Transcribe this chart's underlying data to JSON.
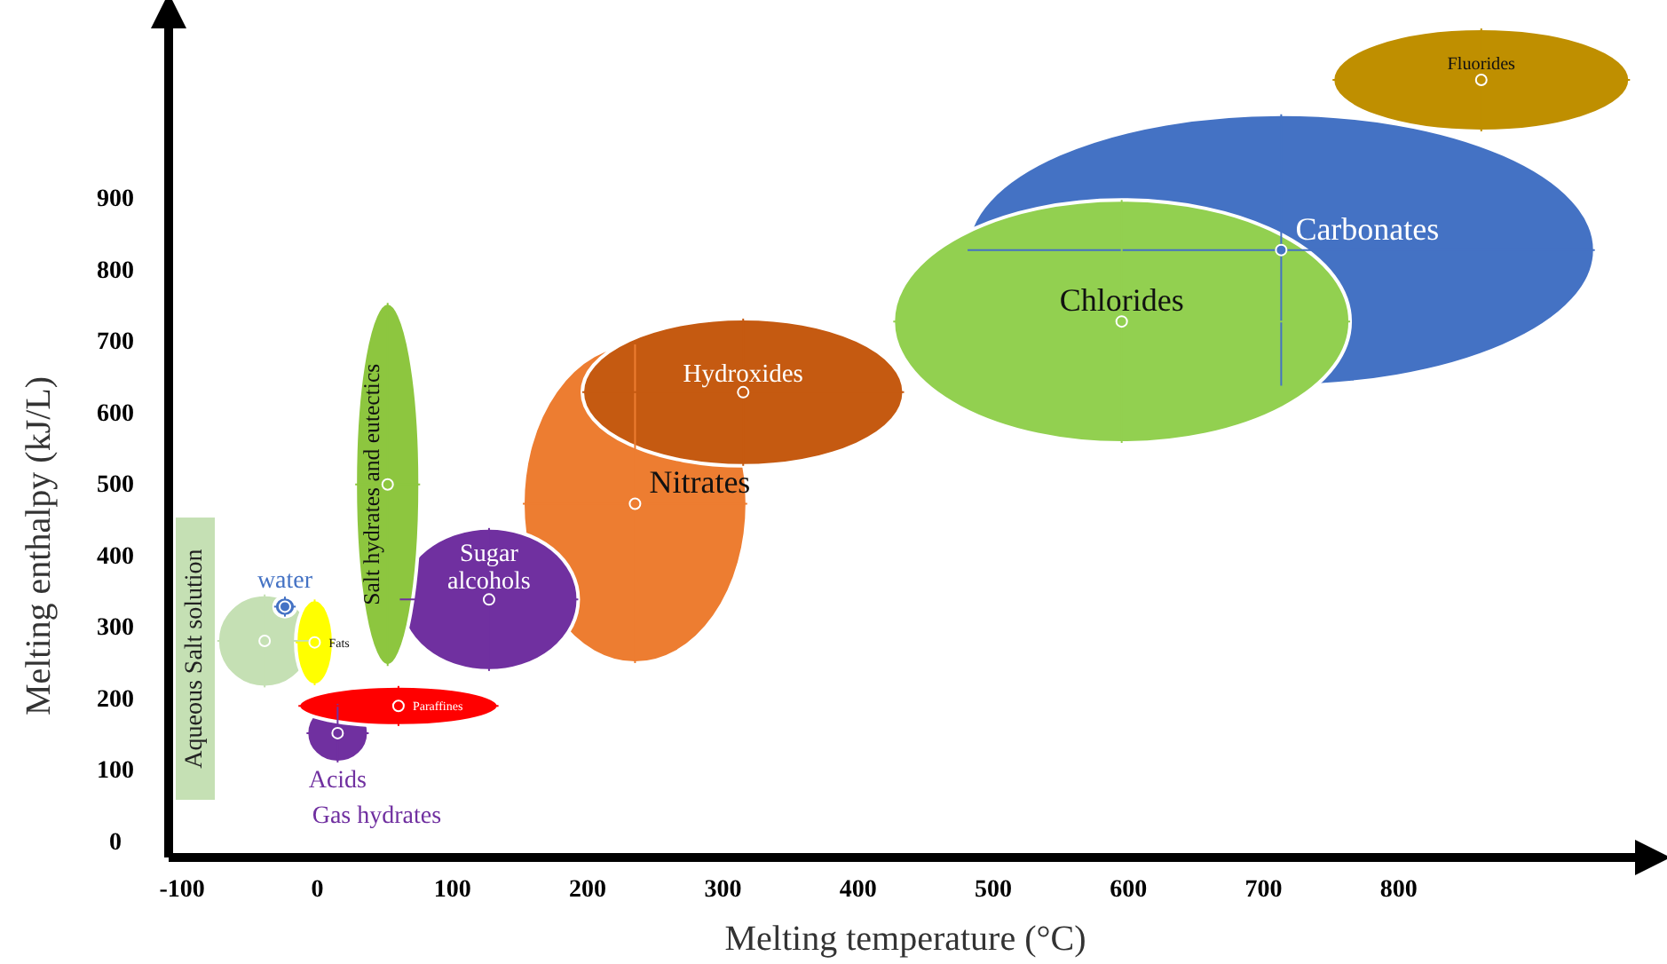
{
  "chart_data": {
    "type": "scatter",
    "xlabel": "Melting temperature (°C)",
    "ylabel": "Melting enthalpy (kJ/L)",
    "xlim": [
      -110,
      980
    ],
    "ylim": [
      -20,
      1150
    ],
    "xticks": [
      -100,
      0,
      100,
      200,
      300,
      400,
      500,
      600,
      700,
      800
    ],
    "yticks": [
      0,
      100,
      200,
      300,
      400,
      500,
      600,
      700,
      800,
      900
    ],
    "series": [
      {
        "name": "Carbonates",
        "color": "#4472c4",
        "x": [
          713
        ],
        "values": [
          830
        ],
        "xerrors": [
          232
        ],
        "errors": [
          190
        ]
      },
      {
        "name": "Fluorides",
        "color": "#bf8f00",
        "x": [
          861
        ],
        "values": [
          1068
        ],
        "xerrors": [
          110
        ],
        "errors": [
          72
        ]
      },
      {
        "name": "Chlorides",
        "color": "#92d050",
        "x": [
          595
        ],
        "values": [
          730
        ],
        "xerrors": [
          169
        ],
        "errors": [
          170
        ]
      },
      {
        "name": "Nitrates",
        "color": "#ed7d31",
        "x": [
          235
        ],
        "values": [
          475
        ],
        "xerrors": [
          83
        ],
        "errors": [
          223
        ]
      },
      {
        "name": "Hydroxides",
        "color": "#c55a11",
        "x": [
          315
        ],
        "values": [
          631
        ],
        "xerrors": [
          119
        ],
        "errors": [
          103
        ]
      },
      {
        "name": "Sugar alcohols",
        "color": "#7030a0",
        "x": [
          127
        ],
        "values": [
          341
        ],
        "xerrors": [
          66
        ],
        "errors": [
          100
        ]
      },
      {
        "name": "Salt hydrates and eutectics",
        "color": "#8dc63f",
        "x": [
          52
        ],
        "values": [
          502
        ],
        "xerrors": [
          24
        ],
        "errors": [
          254
        ]
      },
      {
        "name": "Aqueous Salt solution",
        "color": "#c5e0b4",
        "x": [
          -39
        ],
        "values": [
          283
        ],
        "xerrors": [
          35
        ],
        "errors": [
          65
        ]
      },
      {
        "name": "Acids",
        "color": "#7030a0",
        "x": [
          15
        ],
        "values": [
          154
        ],
        "xerrors": [
          23
        ],
        "errors": [
          41
        ]
      },
      {
        "name": "Paraffines",
        "color": "#ff0000",
        "x": [
          60
        ],
        "values": [
          192
        ],
        "xerrors": [
          74
        ],
        "errors": [
          28
        ]
      },
      {
        "name": "Fats",
        "color": "#ffff00",
        "x": [
          -2
        ],
        "values": [
          281
        ],
        "xerrors": [
          14
        ],
        "errors": [
          60
        ]
      },
      {
        "name": "water",
        "color": "#4472c4",
        "x": [
          -24
        ],
        "values": [
          331
        ],
        "xerrors": [
          8
        ],
        "errors": [
          14
        ]
      }
    ],
    "annotations": [
      "Gas hydrates"
    ]
  }
}
